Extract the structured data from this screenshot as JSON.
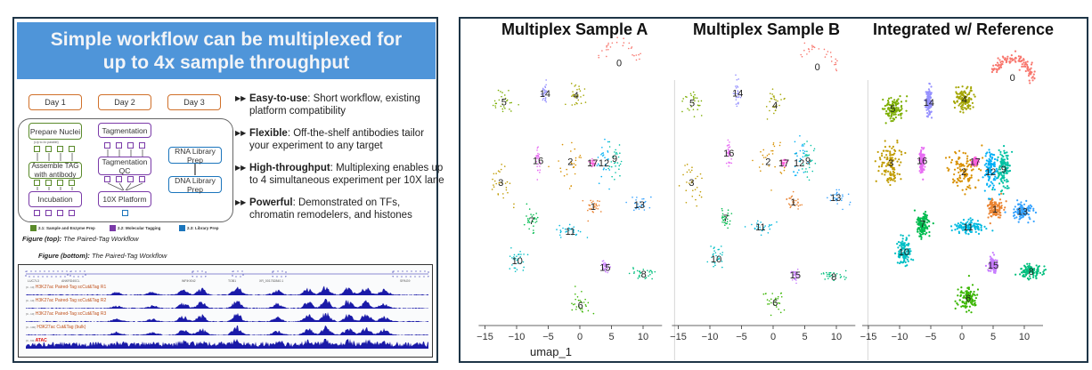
{
  "left_panel": {
    "title_line1": "Simple workflow can be multiplexed for",
    "title_line2": "up to 4x sample throughput",
    "title_color": "#4f95d9",
    "workflow": {
      "days": [
        "Day 1",
        "Day 2",
        "Day 3"
      ],
      "steps": {
        "prepare_nuclei": "Prepare Nuclei",
        "parallel_note": "(Up to 4x parallel)",
        "assemble_tag": "Assemble TAG with antibody",
        "incubation": "Incubation",
        "tagmentation": "Tagmentation",
        "tagmentation_qc": "Tagmentation QC",
        "platform_10x": "10X Platform",
        "rna_library_prep": "RNA Library Prep",
        "dna_library_prep": "DNA Library Prep"
      },
      "legend": [
        {
          "label": "2.1: Sample and Enzyme Prep",
          "color": "#5a8a2a"
        },
        {
          "label": "2.2: Molecular Tagging",
          "color": "#7a3aa8"
        },
        {
          "label": "2.3: Library Prep",
          "color": "#1b75bc"
        }
      ]
    },
    "caption_top_bold": "Figure (top):",
    "caption_top": " The Paired-Tag Workflow",
    "caption_bottom_bold": "Figure (bottom):",
    "caption_bottom": " The Paired-Tag Workflow",
    "bullets": [
      {
        "bold": "Easy-to-use",
        "text": ": Short workflow, existing platform compatibility"
      },
      {
        "bold": "Flexible",
        "text": ": Off-the-shelf antibodies tailor your experiment to any target"
      },
      {
        "bold": "High-throughput",
        "text": ": Multiplexing enables up to 4 simultaneous experiment per 10X lane"
      },
      {
        "bold": "Powerful",
        "text": ": Demonstrated on TFs, chromatin remodelers, and histones"
      }
    ],
    "genome_browser": {
      "genes": [
        "LUC7L3",
        "ANKRD40CL",
        "WFIKKN2",
        "TOB1",
        "XR_001752840.1",
        "SPAG9"
      ],
      "tracks": [
        {
          "label": "H3K27ac Paired-Tag scCut&Tag R1",
          "range": "[0 - 10]"
        },
        {
          "label": "H3K27ac Paired-Tag scCut&Tag R2",
          "range": "[0 - 10]"
        },
        {
          "label": "H3K27ac Paired-Tag scCut&Tag R3",
          "range": "[0 - 10]"
        },
        {
          "label": "H3K27ac Cut&Tag (bulk)",
          "range": "[0 - 100]"
        },
        {
          "label": "ATAC",
          "range": "[0 - 60]"
        }
      ],
      "signal_color": "#1a1aa8"
    }
  },
  "chart_data": [
    {
      "type": "scatter",
      "title": "Multiplex Sample A",
      "xlabel": "umap_1",
      "xticks": [
        -15,
        -10,
        -5,
        0,
        5,
        10
      ],
      "xlim": [
        -16,
        13
      ],
      "clusters": [
        {
          "id": "0",
          "x": 6.2,
          "y": 22.5
        },
        {
          "id": "1",
          "x": 2.1,
          "y": -0.3
        },
        {
          "id": "2",
          "x": -1.5,
          "y": 6.8
        },
        {
          "id": "3",
          "x": -12.5,
          "y": 3.5
        },
        {
          "id": "4",
          "x": -0.6,
          "y": 17.3
        },
        {
          "id": "5",
          "x": -12,
          "y": 16.3
        },
        {
          "id": "6",
          "x": 0.1,
          "y": -15.9
        },
        {
          "id": "7",
          "x": -7.6,
          "y": -2.5
        },
        {
          "id": "8",
          "x": 10.1,
          "y": -11
        },
        {
          "id": "9",
          "x": 5.5,
          "y": 7.3
        },
        {
          "id": "10",
          "x": -9.9,
          "y": -8.9
        },
        {
          "id": "11",
          "x": -1.5,
          "y": -4.2
        },
        {
          "id": "12",
          "x": 3.8,
          "y": 6.6
        },
        {
          "id": "13",
          "x": 9.4,
          "y": 0
        },
        {
          "id": "14",
          "x": -5.5,
          "y": 17.6
        },
        {
          "id": "15",
          "x": 4,
          "y": -9.9
        },
        {
          "id": "16",
          "x": -6.6,
          "y": 7
        },
        {
          "id": "17",
          "x": 2,
          "y": 6.6
        }
      ]
    },
    {
      "type": "scatter",
      "title": "Multiplex Sample B",
      "xticks": [
        -15,
        -10,
        -5,
        0,
        5,
        10
      ],
      "xlim": [
        -16,
        13
      ],
      "clusters": [
        {
          "id": "0",
          "x": 7,
          "y": 21.8
        },
        {
          "id": "1",
          "x": 3.2,
          "y": 0.4
        },
        {
          "id": "2",
          "x": -0.8,
          "y": 6.8
        },
        {
          "id": "3",
          "x": -12.9,
          "y": 3.5
        },
        {
          "id": "4",
          "x": 0.3,
          "y": 15.8
        },
        {
          "id": "5",
          "x": -12.8,
          "y": 16.1
        },
        {
          "id": "6",
          "x": 0.3,
          "y": -15.5
        },
        {
          "id": "7",
          "x": -7.5,
          "y": -2.1
        },
        {
          "id": "8",
          "x": 9.6,
          "y": -11.4
        },
        {
          "id": "9",
          "x": 5.5,
          "y": 7
        },
        {
          "id": "10",
          "x": -9,
          "y": -8.6
        },
        {
          "id": "11",
          "x": -2,
          "y": -3.5
        },
        {
          "id": "12",
          "x": 4.1,
          "y": 6.6
        },
        {
          "id": "13",
          "x": 9.9,
          "y": 1.1
        },
        {
          "id": "14",
          "x": -5.6,
          "y": 17.7
        },
        {
          "id": "15",
          "x": 3.5,
          "y": -11.1
        },
        {
          "id": "16",
          "x": -7,
          "y": 8.2
        },
        {
          "id": "17",
          "x": 1.7,
          "y": 6.6
        }
      ]
    },
    {
      "type": "scatter",
      "title": "Integrated w/ Reference",
      "xticks": [
        -15,
        -10,
        -5,
        0,
        5,
        10
      ],
      "xlim": [
        -16,
        13
      ],
      "clusters": [
        {
          "id": "0",
          "x": 8.1,
          "y": 20.4
        },
        {
          "id": "1",
          "x": 5.3,
          "y": -0.7
        },
        {
          "id": "2",
          "x": 0.3,
          "y": 5.3
        },
        {
          "id": "3",
          "x": -11.4,
          "y": 6.7
        },
        {
          "id": "4",
          "x": 0.4,
          "y": 16.9
        },
        {
          "id": "5",
          "x": -11.1,
          "y": 15.4
        },
        {
          "id": "6",
          "x": 1,
          "y": -15
        },
        {
          "id": "7",
          "x": -6.3,
          "y": -3.1
        },
        {
          "id": "8",
          "x": 11.1,
          "y": -10.7
        },
        {
          "id": "9",
          "x": 6.7,
          "y": 5.7
        },
        {
          "id": "10",
          "x": -9.3,
          "y": -7.6
        },
        {
          "id": "11",
          "x": 1,
          "y": -3.6
        },
        {
          "id": "12",
          "x": 4.6,
          "y": 5.3
        },
        {
          "id": "13",
          "x": 9.7,
          "y": -1.1
        },
        {
          "id": "14",
          "x": -5.3,
          "y": 16.4
        },
        {
          "id": "15",
          "x": 5,
          "y": -9.7
        },
        {
          "id": "16",
          "x": -6.4,
          "y": 7.1
        },
        {
          "id": "17",
          "x": 2.1,
          "y": 6.9
        }
      ]
    }
  ],
  "cluster_colors": [
    "#F8766D",
    "#EA8331",
    "#D89000",
    "#C09B00",
    "#A3A500",
    "#7CAE00",
    "#39B600",
    "#00BB4E",
    "#00BF7D",
    "#00C1A3",
    "#00BFC4",
    "#00BAE0",
    "#00B0F6",
    "#35A2FF",
    "#9590FF",
    "#C77CFF",
    "#E76BF3",
    "#FA62DB"
  ]
}
